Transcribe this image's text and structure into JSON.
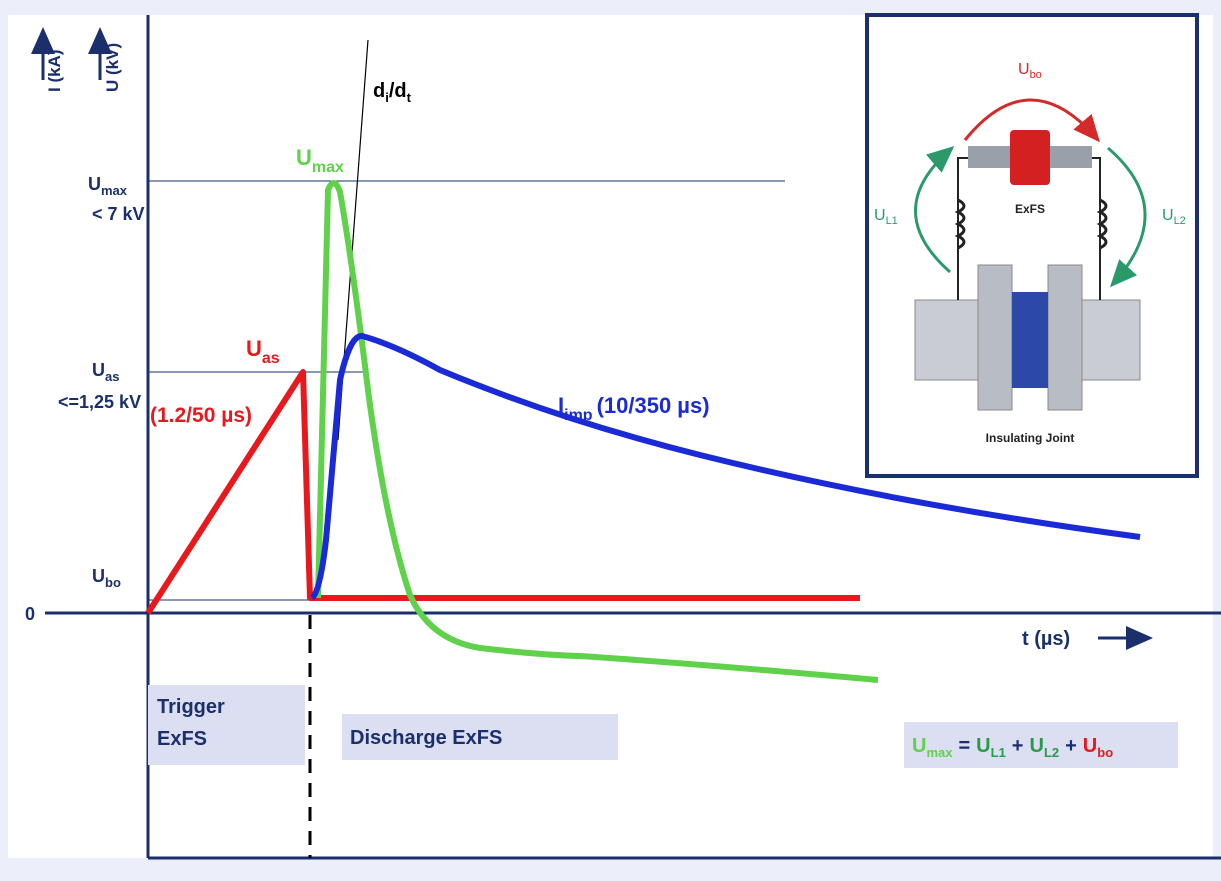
{
  "axis": {
    "current_label": "I (kA)",
    "voltage_label": "U (kV)",
    "origin": "0",
    "time_label": "t (µs)"
  },
  "levels": [
    {
      "symbol": "U",
      "sub": "max",
      "note": "< 7 kV"
    },
    {
      "symbol": "U",
      "sub": "as",
      "note": "<=1,25 kV"
    },
    {
      "symbol": "U",
      "sub": "bo"
    }
  ],
  "curves": {
    "didt": {
      "a": "d",
      "a_sub": "i",
      "b": "/d",
      "b_sub": "t"
    },
    "umax": {
      "symbol": "U",
      "sub": "max"
    },
    "uas": {
      "symbol": "U",
      "sub": "as",
      "note": "(1.2/50 µs)"
    },
    "imp": {
      "symbol": "I",
      "sub": "imp",
      "note": "(10/350 µs)"
    }
  },
  "phases": {
    "trigger": [
      "Trigger",
      "ExFS"
    ],
    "discharge": "Discharge ExFS"
  },
  "formula": [
    {
      "symbol": "U",
      "sub": "max"
    },
    "=",
    {
      "symbol": "U",
      "sub": "L1"
    },
    "+",
    {
      "symbol": "U",
      "sub": "L2"
    },
    "+",
    {
      "symbol": "U",
      "sub": "bo"
    }
  ],
  "inset": {
    "u_bo": {
      "symbol": "U",
      "sub": "bo"
    },
    "u_l1": {
      "symbol": "U",
      "sub": "L1"
    },
    "u_l2": {
      "symbol": "U",
      "sub": "L2"
    },
    "device": "ExFS",
    "joint": "Insulating Joint"
  }
}
